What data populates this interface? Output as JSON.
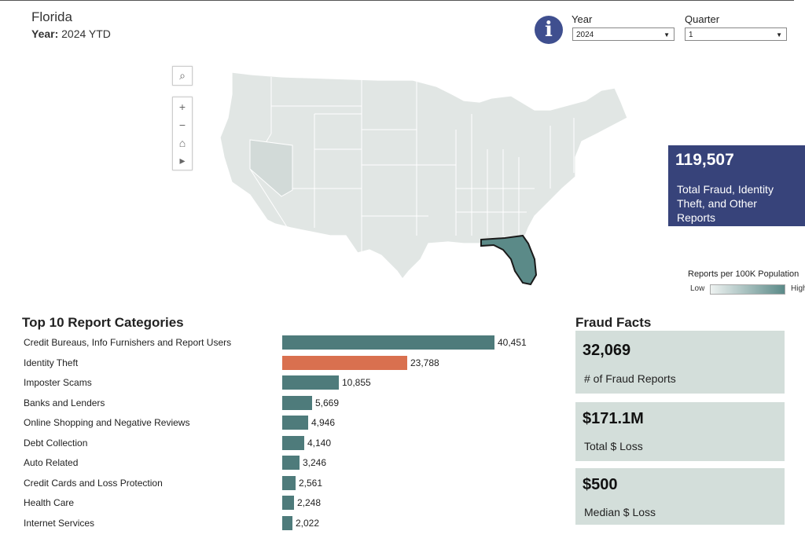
{
  "header": {
    "state": "Florida",
    "year_prefix": "Year:",
    "year_value": "2024 YTD"
  },
  "filters": {
    "year_label": "Year",
    "year_value": "2024",
    "quarter_label": "Quarter",
    "quarter_value": "1"
  },
  "total": {
    "value": "119,507",
    "label": "Total Fraud, Identity Theft, and Other Reports"
  },
  "legend": {
    "title": "Reports per 100K Population",
    "low": "Low",
    "high": "High",
    "low_color": "#eef2f1",
    "high_color": "#5b8a88"
  },
  "map": {
    "highlighted_state": "Florida",
    "highlight_color": "#5b8a88",
    "base_color": "#e1e6e4"
  },
  "chart_data": {
    "type": "bar",
    "title": "Top 10 Report Categories",
    "orientation": "horizontal",
    "categories": [
      "Credit Bureaus, Info Furnishers and Report Users",
      "Identity Theft",
      "Imposter Scams",
      "Banks and Lenders",
      "Online Shopping and Negative Reviews",
      "Debt Collection",
      "Auto Related",
      "Credit Cards and Loss Protection",
      "Health Care",
      "Internet Services"
    ],
    "values": [
      40451,
      23788,
      10855,
      5669,
      4946,
      4140,
      3246,
      2561,
      2248,
      2022
    ],
    "value_labels": [
      "40,451",
      "23,788",
      "10,855",
      "5,669",
      "4,946",
      "4,140",
      "3,246",
      "2,561",
      "2,248",
      "2,022"
    ],
    "colors": [
      "#4e7b7b",
      "#d9704f",
      "#4e7b7b",
      "#4e7b7b",
      "#4e7b7b",
      "#4e7b7b",
      "#4e7b7b",
      "#4e7b7b",
      "#4e7b7b",
      "#4e7b7b"
    ],
    "xlim": [
      0,
      40451
    ]
  },
  "fraud_facts": {
    "title": "Fraud Facts",
    "items": [
      {
        "value": "32,069",
        "label": "# of Fraud Reports"
      },
      {
        "value": "$171.1M",
        "label": "Total $ Loss"
      },
      {
        "value": "$500",
        "label": "Median $ Loss"
      }
    ]
  }
}
